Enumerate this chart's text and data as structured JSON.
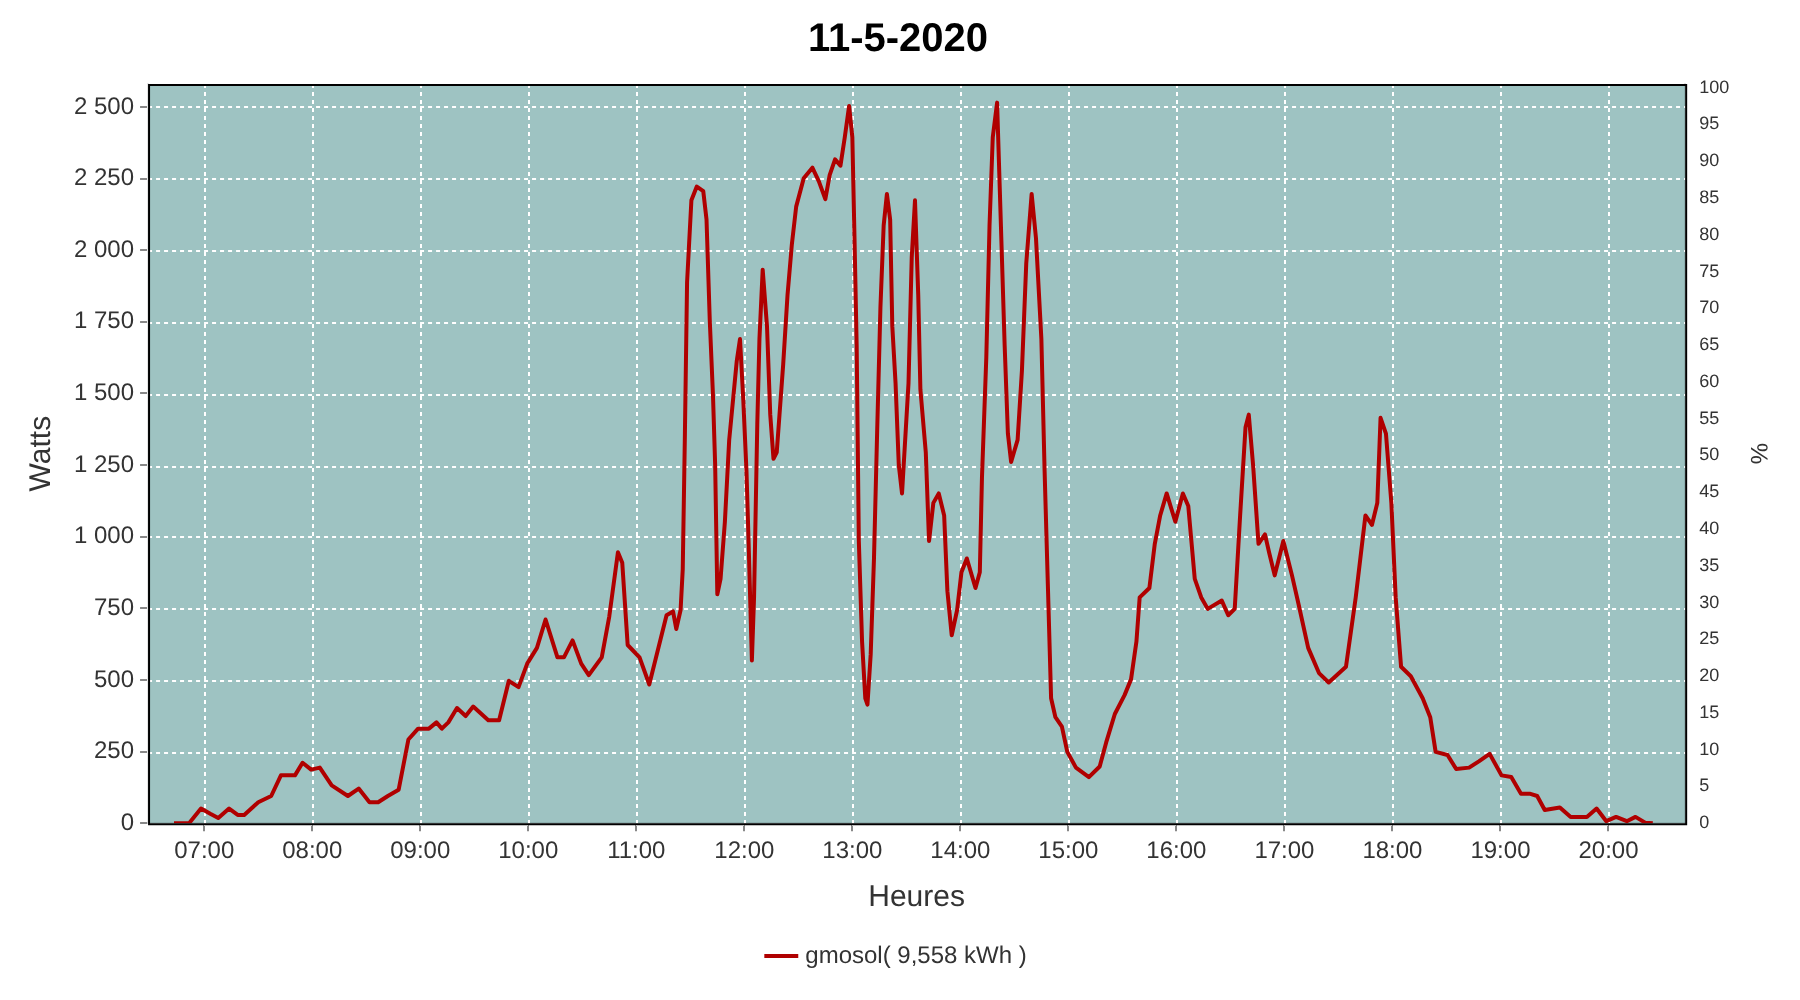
{
  "chart_data": {
    "type": "line",
    "title": "11-5-2020",
    "xlabel": "Heures",
    "ylabel": "Watts",
    "y2label": "%",
    "xlim": [
      6.48,
      20.71
    ],
    "xticks": [
      {
        "value": 7,
        "label": "07:00"
      },
      {
        "value": 8,
        "label": "08:00"
      },
      {
        "value": 9,
        "label": "09:00"
      },
      {
        "value": 10,
        "label": "10:00"
      },
      {
        "value": 11,
        "label": "11:00"
      },
      {
        "value": 12,
        "label": "12:00"
      },
      {
        "value": 13,
        "label": "13:00"
      },
      {
        "value": 14,
        "label": "14:00"
      },
      {
        "value": 15,
        "label": "15:00"
      },
      {
        "value": 16,
        "label": "16:00"
      },
      {
        "value": 17,
        "label": "17:00"
      },
      {
        "value": 18,
        "label": "18:00"
      },
      {
        "value": 19,
        "label": "19:00"
      },
      {
        "value": 20,
        "label": "20:00"
      }
    ],
    "ylim": [
      0,
      2580
    ],
    "yticks": [
      0,
      250,
      500,
      750,
      {
        "value": 1000,
        "label": "1 000"
      },
      {
        "value": 1250,
        "label": "1 250"
      },
      {
        "value": 1500,
        "label": "1 500"
      },
      {
        "value": 1750,
        "label": "1 750"
      },
      {
        "value": 2000,
        "label": "2 000"
      },
      {
        "value": 2250,
        "label": "2 250"
      },
      {
        "value": 2500,
        "label": "2 500"
      }
    ],
    "y2lim": [
      0,
      100.5
    ],
    "y2ticks": [
      0,
      5,
      10,
      15,
      20,
      25,
      30,
      35,
      40,
      45,
      50,
      55,
      60,
      65,
      70,
      75,
      80,
      85,
      90,
      95,
      100
    ],
    "grid": true,
    "legend": "bottom",
    "marker": "none",
    "line_style": "solid",
    "series": [
      {
        "name": "gmosol( 9,558 kWh )",
        "color": "#b00000",
        "x": [
          6.72,
          6.86,
          6.97,
          7.06,
          7.13,
          7.23,
          7.31,
          7.37,
          7.5,
          7.62,
          7.71,
          7.84,
          7.91,
          7.99,
          8.07,
          8.18,
          8.33,
          8.43,
          8.53,
          8.61,
          8.7,
          8.8,
          8.89,
          8.98,
          9.08,
          9.15,
          9.2,
          9.26,
          9.34,
          9.42,
          9.49,
          9.63,
          9.73,
          9.82,
          9.91,
          9.99,
          10.08,
          10.16,
          10.27,
          10.33,
          10.41,
          10.49,
          10.56,
          10.68,
          10.75,
          10.83,
          10.87,
          10.92,
          11.03,
          11.12,
          11.28,
          11.34,
          11.37,
          11.41,
          11.43,
          11.45,
          11.47,
          11.51,
          11.56,
          11.62,
          11.65,
          11.68,
          11.71,
          11.73,
          11.75,
          11.78,
          11.82,
          11.86,
          11.93,
          11.96,
          11.99,
          12.02,
          12.04,
          12.07,
          12.09,
          12.12,
          12.14,
          12.17,
          12.21,
          12.24,
          12.27,
          12.3,
          12.36,
          12.4,
          12.44,
          12.48,
          12.55,
          12.63,
          12.69,
          12.75,
          12.79,
          12.84,
          12.89,
          12.93,
          12.97,
          13.0,
          13.02,
          13.04,
          13.06,
          13.09,
          13.12,
          13.14,
          13.17,
          13.2,
          13.23,
          13.26,
          13.29,
          13.32,
          13.35,
          13.37,
          13.4,
          13.43,
          13.46,
          13.52,
          13.55,
          13.58,
          13.61,
          13.63,
          13.68,
          13.71,
          13.75,
          13.8,
          13.85,
          13.88,
          13.92,
          13.97,
          14.01,
          14.06,
          14.14,
          14.18,
          14.2,
          14.24,
          14.27,
          14.3,
          14.34,
          14.37,
          14.41,
          14.44,
          14.47,
          14.53,
          14.57,
          14.61,
          14.66,
          14.7,
          14.75,
          14.78,
          14.81,
          14.84,
          14.88,
          14.94,
          14.99,
          15.07,
          15.19,
          15.29,
          15.35,
          15.43,
          15.52,
          15.58,
          15.63,
          15.66,
          15.75,
          15.8,
          15.85,
          15.91,
          15.99,
          16.06,
          16.11,
          16.17,
          16.23,
          16.29,
          16.42,
          16.48,
          16.54,
          16.59,
          16.64,
          16.67,
          16.71,
          16.76,
          16.82,
          16.86,
          16.91,
          16.99,
          17.07,
          17.13,
          17.22,
          17.32,
          17.41,
          17.57,
          17.66,
          17.75,
          17.81,
          17.86,
          17.89,
          17.94,
          17.99,
          18.03,
          18.08,
          18.17,
          18.28,
          18.35,
          18.4,
          18.51,
          18.59,
          18.71,
          18.8,
          18.9,
          19.01,
          19.1,
          19.19,
          19.27,
          19.34,
          19.41,
          19.55,
          19.65,
          19.8,
          19.89,
          19.98,
          20.07,
          20.17,
          20.25,
          20.34,
          20.41
        ],
        "values": [
          0,
          0,
          51,
          32,
          18,
          51,
          29,
          29,
          73,
          95,
          167,
          167,
          211,
          187,
          194,
          132,
          95,
          121,
          73,
          73,
          95,
          117,
          292,
          330,
          330,
          352,
          330,
          352,
          402,
          374,
          407,
          359,
          359,
          497,
          475,
          557,
          612,
          711,
          579,
          579,
          638,
          557,
          517,
          579,
          722,
          946,
          909,
          622,
          579,
          484,
          726,
          739,
          678,
          744,
          887,
          1360,
          1888,
          2174,
          2222,
          2206,
          2107,
          1756,
          1492,
          1250,
          799,
          853,
          1052,
          1338,
          1613,
          1690,
          1481,
          1228,
          975,
          568,
          788,
          1393,
          1690,
          1932,
          1734,
          1426,
          1272,
          1294,
          1602,
          1844,
          2020,
          2152,
          2251,
          2288,
          2240,
          2178,
          2262,
          2317,
          2295,
          2394,
          2503,
          2394,
          2042,
          1668,
          985,
          634,
          436,
          414,
          590,
          920,
          1371,
          1800,
          2086,
          2196,
          2107,
          1734,
          1536,
          1250,
          1151,
          1536,
          1976,
          2174,
          1844,
          1514,
          1294,
          985,
          1118,
          1151,
          1074,
          810,
          656,
          744,
          876,
          924,
          821,
          876,
          1206,
          1624,
          2086,
          2394,
          2515,
          2152,
          1668,
          1360,
          1261,
          1338,
          1580,
          1954,
          2196,
          2042,
          1690,
          1228,
          832,
          436,
          370,
          337,
          249,
          194,
          161,
          198,
          282,
          381,
          447,
          502,
          634,
          788,
          821,
          975,
          1074,
          1151,
          1052,
          1151,
          1107,
          853,
          788,
          748,
          777,
          726,
          748,
          1074,
          1382,
          1426,
          1250,
          975,
          1008,
          942,
          865,
          985,
          865,
          766,
          612,
          524,
          491,
          546,
          788,
          1074,
          1041,
          1118,
          1415,
          1360,
          1118,
          788,
          546,
          513,
          436,
          370,
          249,
          238,
          189,
          194,
          216,
          242,
          167,
          161,
          103,
          103,
          95,
          46,
          55,
          22,
          22,
          51,
          7,
          22,
          7,
          22,
          2,
          0
        ]
      }
    ]
  }
}
